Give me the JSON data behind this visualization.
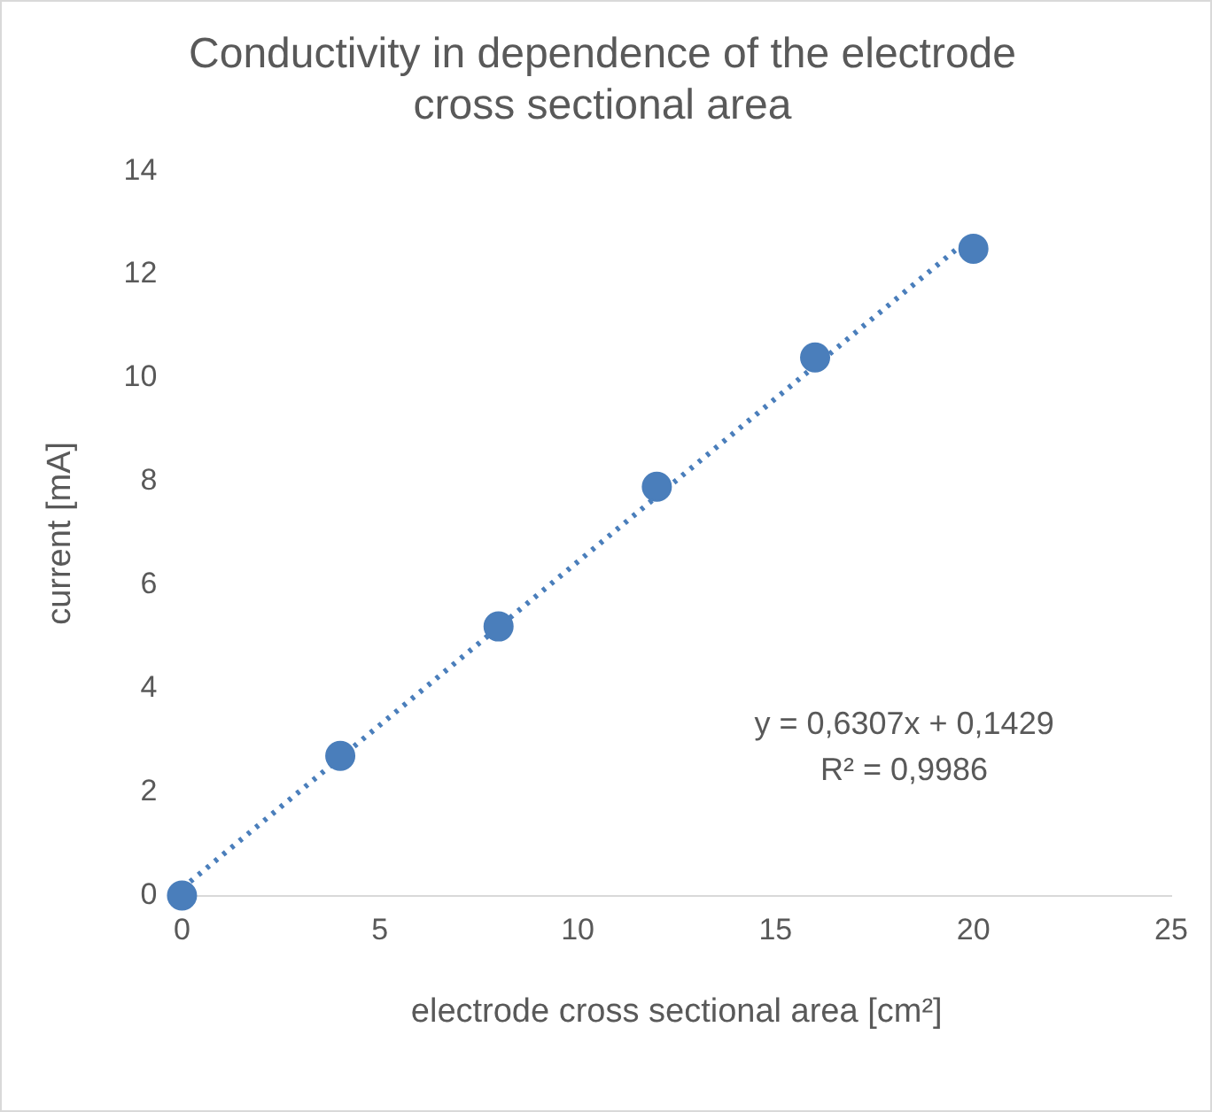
{
  "chart_data": {
    "type": "scatter",
    "title": "Conductivity in dependence of the electrode cross sectional area",
    "xlabel": "electrode cross sectional area [cm²]",
    "ylabel": "current [mA]",
    "x": [
      0,
      4,
      8,
      12,
      16,
      20
    ],
    "series": [
      {
        "type": "scatter",
        "color": "#4a7ebb",
        "marker": "circle",
        "values": [
          0,
          2.7,
          5.2,
          7.9,
          10.4,
          12.5
        ]
      },
      {
        "type": "line",
        "color": "#4a7ebb",
        "marker": "none",
        "line_style": "dotted",
        "x": [
          0,
          20
        ],
        "values": [
          0.14,
          12.76
        ]
      }
    ],
    "xlim": [
      0,
      25
    ],
    "xticks": [
      0,
      5,
      10,
      15,
      20,
      25
    ],
    "ylim": [
      0,
      14
    ],
    "yticks": [
      0,
      2,
      4,
      6,
      8,
      10,
      12,
      14
    ],
    "grid": false,
    "legend": false,
    "annotations": [
      "y = 0,6307x + 0,1429",
      "R² = 0,9986"
    ]
  }
}
